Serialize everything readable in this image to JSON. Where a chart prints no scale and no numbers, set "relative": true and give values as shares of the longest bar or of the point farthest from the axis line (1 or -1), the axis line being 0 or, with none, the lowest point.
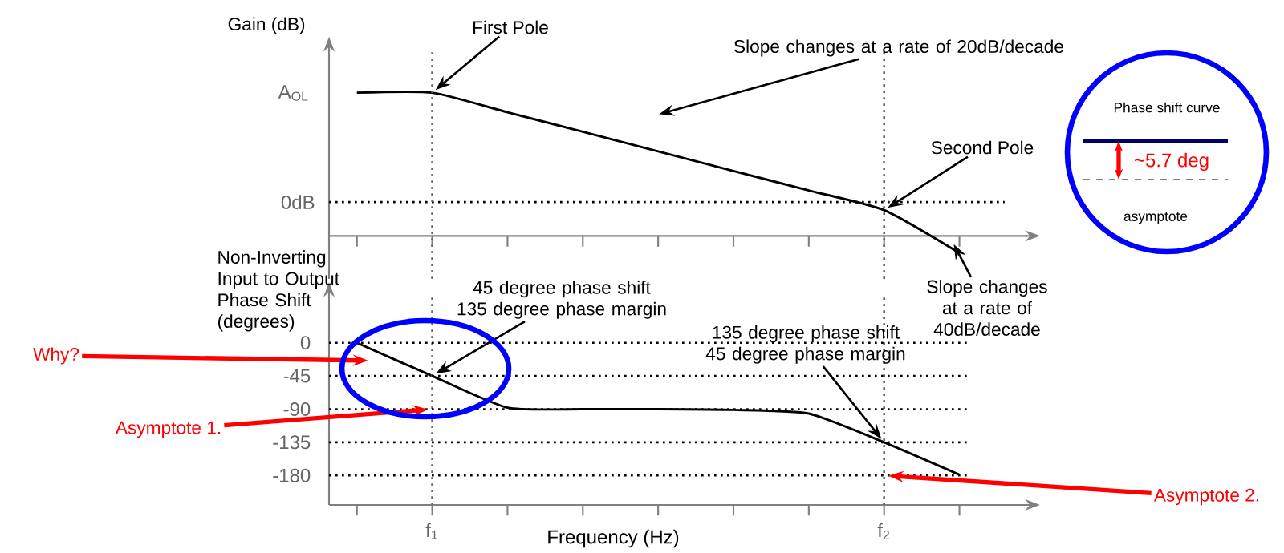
{
  "chart_data": [
    {
      "type": "line",
      "relative": true,
      "tick_labels": false,
      "categories": [
        null,
        "f$_{1}$",
        null,
        null,
        null,
        null,
        null,
        "f$_{2}$",
        null
      ],
      "series": [
        {
          "color": "#000000",
          "values": [
            1,
            1,
            0.863,
            0.727,
            0.59,
            0.453,
            0.317,
            0.18,
            -0.12
          ]
        }
      ],
      "ref_lines": [
        {
          "axis": "y",
          "value": 0.236,
          "label": "0dB",
          "line_style": "dotted",
          "color": "#000000"
        },
        {
          "axis": "x",
          "value": "f$_{1}$",
          "line_style": "dotted",
          "color": "#666666"
        },
        {
          "axis": "x",
          "value": "f$_{2}$",
          "line_style": "dotted",
          "color": "#666666"
        }
      ],
      "annotations": [
        {
          "text": "First Pole",
          "x": "f$_{1}$",
          "y": 1
        },
        "Slope changes at a rate of 20dB/decade",
        {
          "text": "Second Pole",
          "x": "f$_{2}$",
          "y": 0.18
        },
        "Slope changes at a rate of 40dB/decade",
        "A$_{OL}$",
        "Phase shift curve",
        "~5.7 deg",
        "asymptote"
      ],
      "ylabel": "Gain (dB)"
    },
    {
      "type": "line",
      "xlabel": "Frequency (Hz)",
      "ylabel": "Non-Inverting Input to Output Phase Shift (degrees)",
      "ylim": [
        -220,
        65
      ],
      "categories": [
        null,
        "f$_{1}$",
        null,
        null,
        null,
        null,
        null,
        "f$_{2}$",
        null
      ],
      "yticks": [
        0,
        -45,
        -90,
        -135,
        -180
      ],
      "series": [
        {
          "color": "#000000",
          "values": [
            0,
            -45,
            -88,
            -90,
            -90,
            -91,
            -96,
            -135,
            -179
          ]
        }
      ],
      "ref_lines": [
        {
          "axis": "x",
          "value": "f$_{1}$",
          "line_style": "dotted",
          "color": "#666666"
        },
        {
          "axis": "x",
          "value": "f$_{2}$",
          "line_style": "dotted",
          "color": "#666666"
        },
        {
          "axis": "y",
          "value": 0,
          "line_style": "dotted",
          "color": "#000000"
        },
        {
          "axis": "y",
          "value": -45,
          "line_style": "dotted",
          "color": "#000000"
        },
        {
          "axis": "y",
          "value": -90,
          "line_style": "dotted",
          "color": "#000000"
        },
        {
          "axis": "y",
          "value": -135,
          "line_style": "dotted",
          "color": "#000000"
        },
        {
          "axis": "y",
          "value": -180,
          "line_style": "dotted",
          "color": "#000000"
        }
      ],
      "annotations": [
        {
          "text": "45 degree phase shift 135 degree phase margin",
          "x": "f$_{1}$",
          "y": -45
        },
        {
          "text": "135 degree phase shift 45 degree phase margin",
          "x": "f$_{2}$",
          "y": -135
        },
        "Why?",
        {
          "text": "Asymptote 1.",
          "x": "f$_{1}$",
          "y": -90
        },
        {
          "text": "Asymptote 2.",
          "x": "f$_{2}$",
          "y": -180
        }
      ]
    }
  ]
}
